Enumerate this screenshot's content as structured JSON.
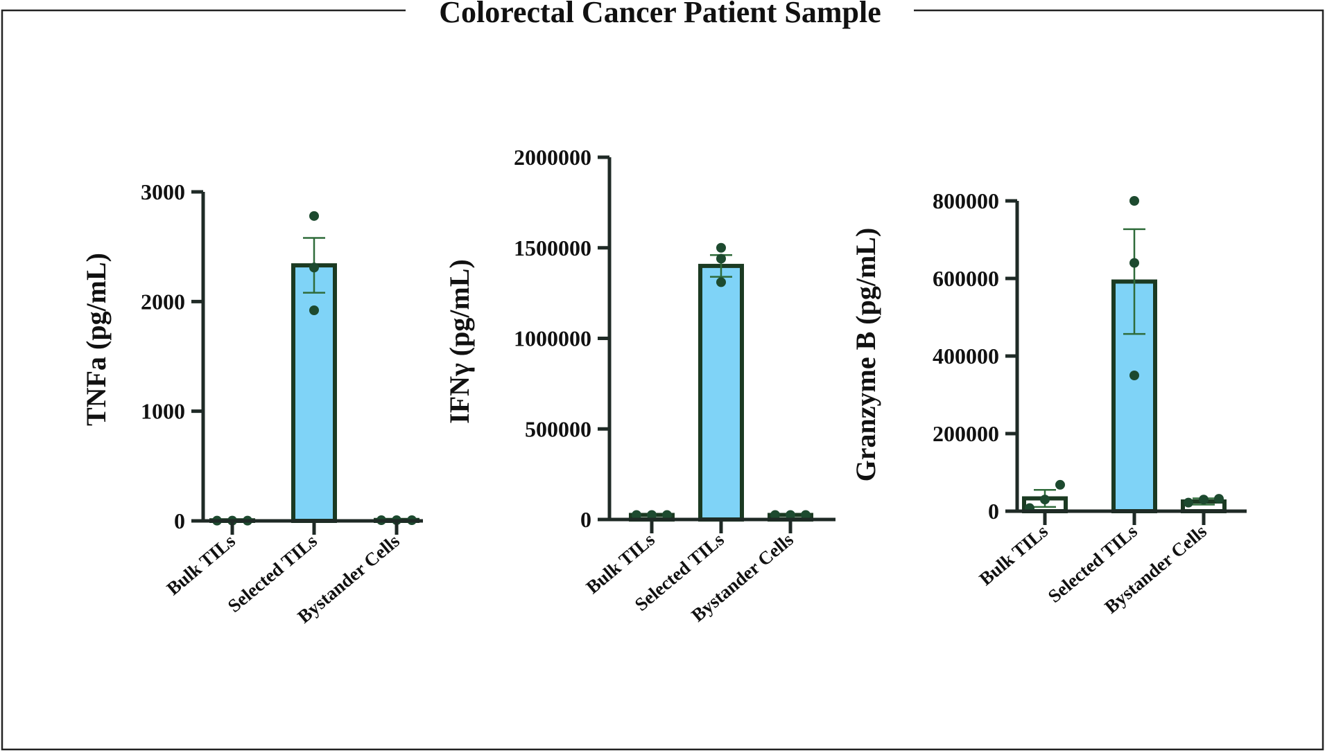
{
  "figure_title": "Colorectal Cancer Patient Sample",
  "colors": {
    "selected_bar_fill": "#7fd3f7",
    "other_bar_fill": "#ffffff",
    "bar_stroke": "#1b3a22",
    "point": "#1d4a2f",
    "error_bar": "#2f6b3a"
  },
  "chart_data": [
    {
      "type": "bar",
      "ylabel": "TNFa (pg/mL)",
      "categories": [
        "Bulk TILs",
        "Selected TILs",
        "Bystander Cells"
      ],
      "values": [
        5,
        2330,
        8
      ],
      "error": [
        0,
        250,
        0
      ],
      "points": [
        [
          2,
          2,
          2
        ],
        [
          1920,
          2310,
          2780
        ],
        [
          6,
          6,
          6
        ]
      ],
      "ylim": [
        0,
        3000
      ],
      "yticks": [
        "0",
        "1000",
        "2000",
        "3000"
      ]
    },
    {
      "type": "bar",
      "ylabel": "IFNγ (pg/mL)",
      "categories": [
        "Bulk TILs",
        "Selected TILs",
        "Bystander Cells"
      ],
      "values": [
        25000,
        1400000,
        25000
      ],
      "error": [
        0,
        60000,
        0
      ],
      "points": [
        [
          25000,
          25000,
          25000
        ],
        [
          1310000,
          1440000,
          1500000
        ],
        [
          25000,
          25000,
          25000
        ]
      ],
      "ylim": [
        0,
        2000000
      ],
      "yticks": [
        "0",
        "500000",
        "1000000",
        "1500000",
        "2000000"
      ]
    },
    {
      "type": "bar",
      "ylabel": "Granzyme B (pg/mL)",
      "categories": [
        "Bulk TILs",
        "Selected TILs",
        "Bystander Cells"
      ],
      "values": [
        33000,
        592000,
        25000
      ],
      "error": [
        22000,
        135000,
        8000
      ],
      "points": [
        [
          8000,
          30000,
          68000
        ],
        [
          350000,
          640000,
          800000
        ],
        [
          22000,
          30000,
          32000
        ]
      ],
      "ylim": [
        0,
        800000
      ],
      "yticks": [
        "0",
        "200000",
        "400000",
        "600000",
        "800000"
      ]
    }
  ]
}
